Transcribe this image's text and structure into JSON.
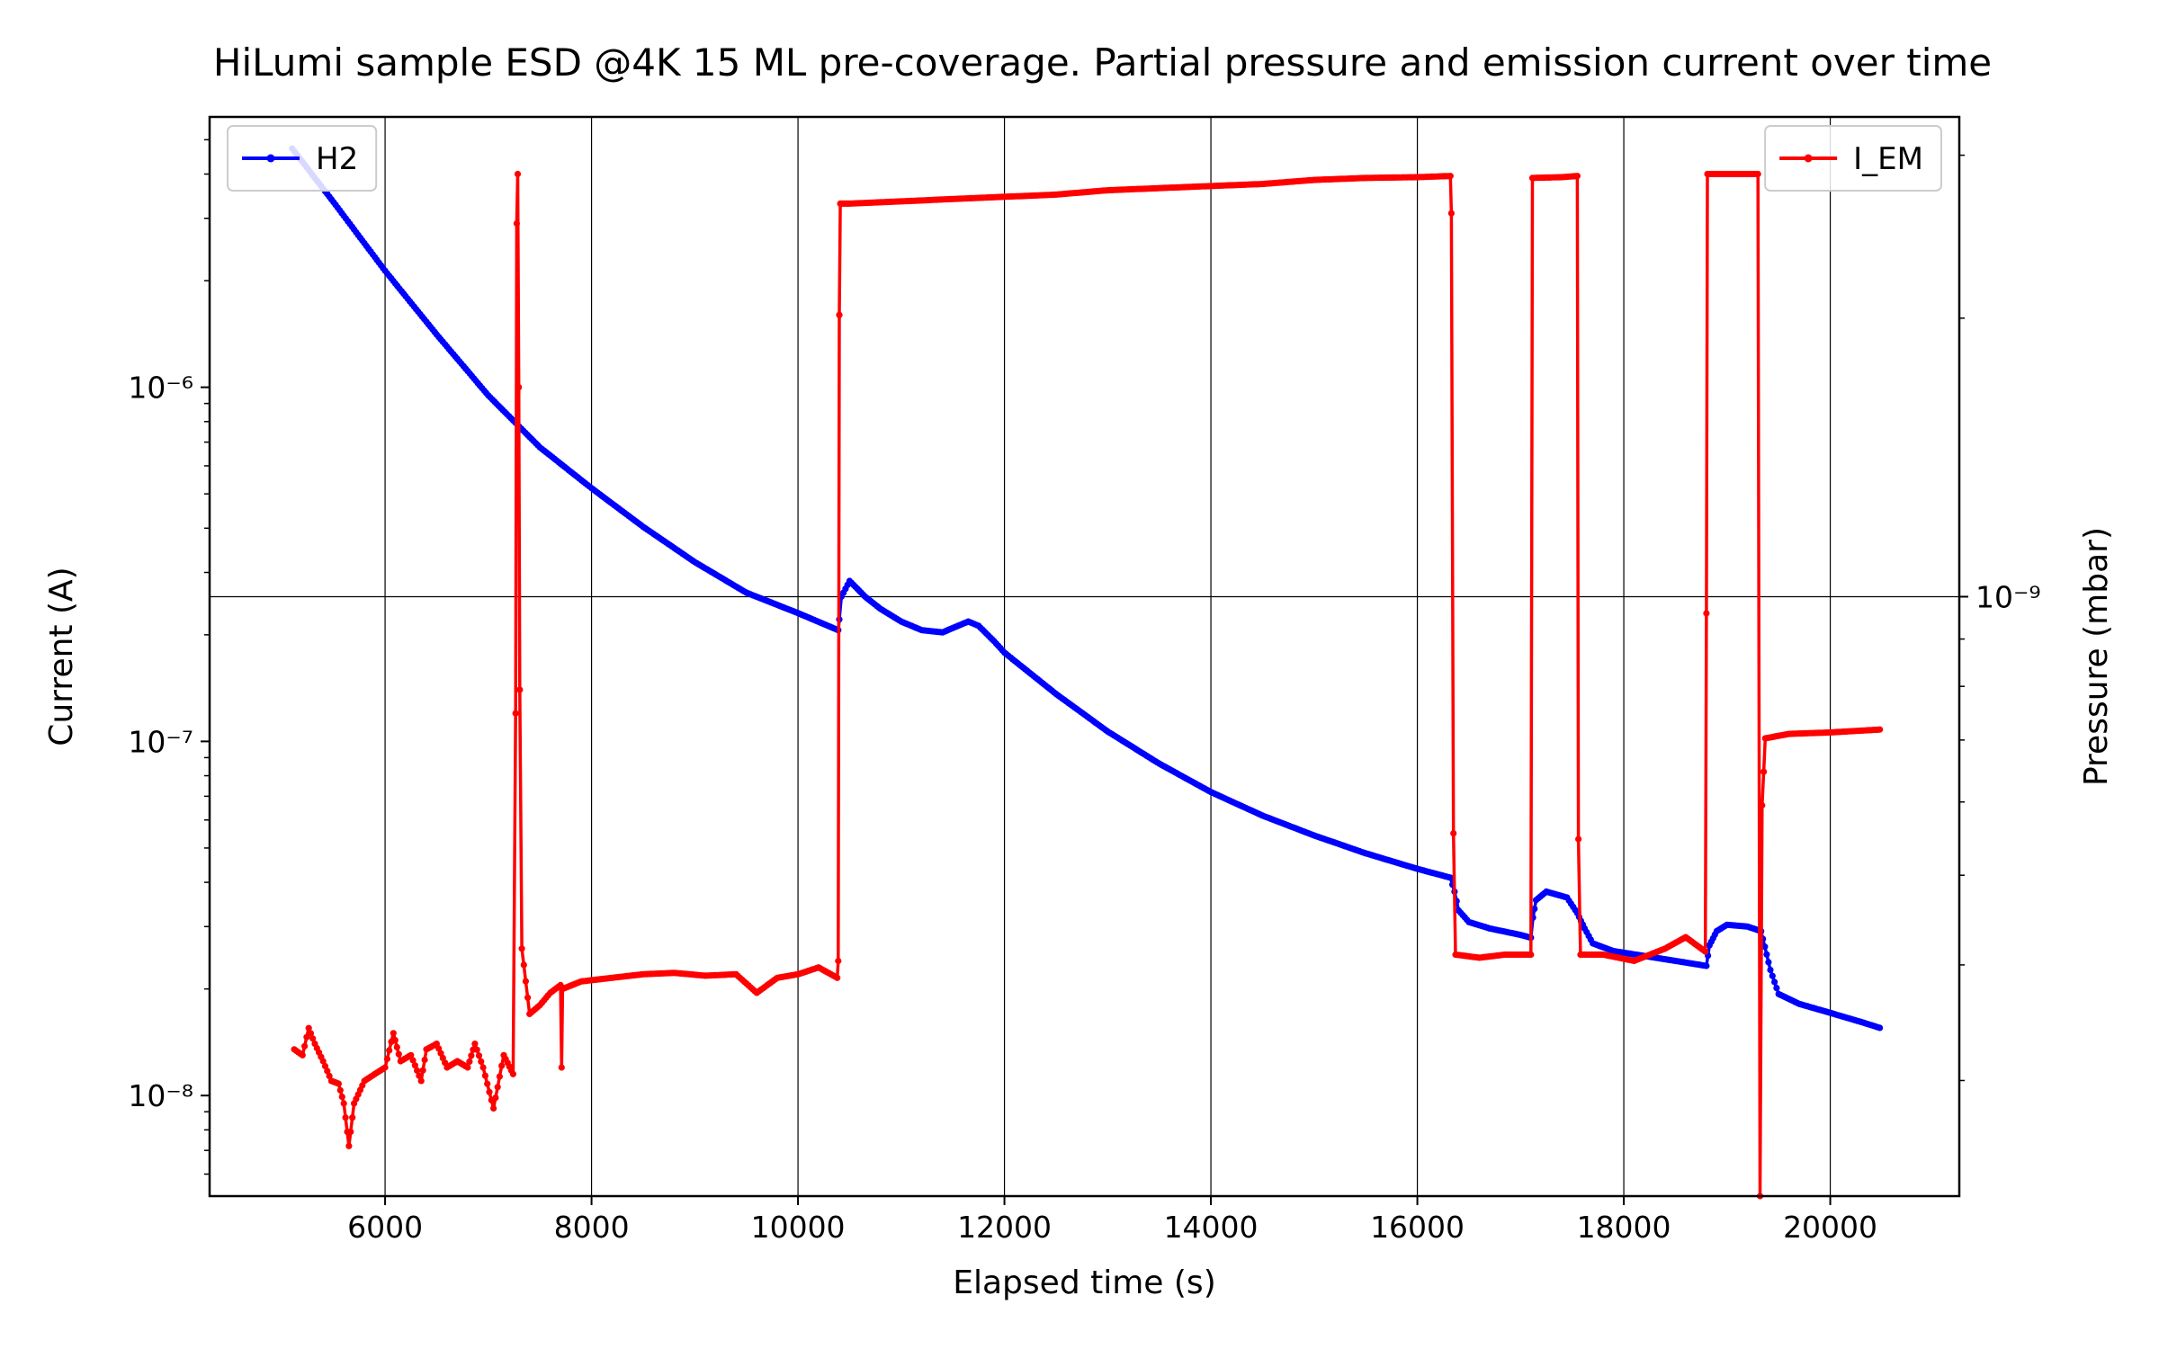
{
  "chart_data": {
    "type": "line",
    "title": "HiLumi sample ESD @4K 15 ML pre-coverage. Partial pressure and emission current over time",
    "xlabel": "Elapsed time (s)",
    "ylabel_left": "Current (A)",
    "ylabel_right": "Pressure (mbar)",
    "xlim": [
      4300,
      21250
    ],
    "x_ticks": [
      6000,
      8000,
      10000,
      12000,
      14000,
      16000,
      18000,
      20000
    ],
    "y_left_scale": "log",
    "y_left_lim": [
      5.2e-09,
      5.8e-06
    ],
    "y_left_ticks": [
      {
        "value": 1e-08,
        "label": "10⁻⁸"
      },
      {
        "value": 1e-07,
        "label": "10⁻⁷"
      },
      {
        "value": 1e-06,
        "label": "10⁻⁶"
      }
    ],
    "y_right_scale": "log",
    "y_right_lim": [
      2.25e-10,
      3.3e-09
    ],
    "y_right_ticks": [
      {
        "value": 1e-09,
        "label": "10⁻⁹"
      }
    ],
    "grid": true,
    "legend_left": {
      "position": "top-left",
      "label": "H2"
    },
    "legend_right": {
      "position": "top-right",
      "label": "I_EM"
    },
    "series": [
      {
        "name": "H2",
        "axis": "right",
        "color": "#0000ff",
        "points": [
          [
            5100,
            3.05e-09
          ],
          [
            5500,
            2.67e-09
          ],
          [
            6000,
            2.25e-09
          ],
          [
            6500,
            1.92e-09
          ],
          [
            7000,
            1.65e-09
          ],
          [
            7500,
            1.45e-09
          ],
          [
            8000,
            1.31e-09
          ],
          [
            8500,
            1.19e-09
          ],
          [
            9000,
            1.09e-09
          ],
          [
            9500,
            1.01e-09
          ],
          [
            10000,
            9.6e-10
          ],
          [
            10390,
            9.2e-10
          ],
          [
            10400,
            9.45e-10
          ],
          [
            10420,
            1e-09
          ],
          [
            10500,
            1.04e-09
          ],
          [
            10650,
            1e-09
          ],
          [
            10800,
            9.7e-10
          ],
          [
            11000,
            9.4e-10
          ],
          [
            11200,
            9.2e-10
          ],
          [
            11400,
            9.15e-10
          ],
          [
            11550,
            9.3e-10
          ],
          [
            11650,
            9.4e-10
          ],
          [
            11750,
            9.3e-10
          ],
          [
            11900,
            8.95e-10
          ],
          [
            12000,
            8.7e-10
          ],
          [
            12500,
            7.85e-10
          ],
          [
            13000,
            7.15e-10
          ],
          [
            13500,
            6.6e-10
          ],
          [
            14000,
            6.15e-10
          ],
          [
            14500,
            5.8e-10
          ],
          [
            15000,
            5.52e-10
          ],
          [
            15500,
            5.28e-10
          ],
          [
            16000,
            5.08e-10
          ],
          [
            16320,
            4.97e-10
          ],
          [
            16360,
            4.8e-10
          ],
          [
            16400,
            4.58e-10
          ],
          [
            16500,
            4.45e-10
          ],
          [
            16700,
            4.38e-10
          ],
          [
            17000,
            4.31e-10
          ],
          [
            17100,
            4.28e-10
          ],
          [
            17120,
            4.5e-10
          ],
          [
            17150,
            4.7e-10
          ],
          [
            17250,
            4.8e-10
          ],
          [
            17450,
            4.73e-10
          ],
          [
            17550,
            4.55e-10
          ],
          [
            17620,
            4.38e-10
          ],
          [
            17700,
            4.22e-10
          ],
          [
            17900,
            4.14e-10
          ],
          [
            18200,
            4.09e-10
          ],
          [
            18500,
            4.04e-10
          ],
          [
            18800,
            3.99e-10
          ],
          [
            18830,
            4.2e-10
          ],
          [
            18900,
            4.35e-10
          ],
          [
            19000,
            4.42e-10
          ],
          [
            19200,
            4.4e-10
          ],
          [
            19330,
            4.35e-10
          ],
          [
            19420,
            3.95e-10
          ],
          [
            19500,
            3.72e-10
          ],
          [
            19700,
            3.63e-10
          ],
          [
            20000,
            3.55e-10
          ],
          [
            20300,
            3.47e-10
          ],
          [
            20480,
            3.42e-10
          ]
        ]
      },
      {
        "name": "I_EM",
        "axis": "left",
        "color": "#ff0000",
        "points": [
          [
            5120,
            1.35e-08
          ],
          [
            5200,
            1.3e-08
          ],
          [
            5260,
            1.55e-08
          ],
          [
            5320,
            1.4e-08
          ],
          [
            5400,
            1.25e-08
          ],
          [
            5480,
            1.1e-08
          ],
          [
            5550,
            1.08e-08
          ],
          [
            5600,
            9.5e-09
          ],
          [
            5650,
            7.2e-09
          ],
          [
            5700,
            9.5e-09
          ],
          [
            5800,
            1.1e-08
          ],
          [
            5900,
            1.15e-08
          ],
          [
            6000,
            1.2e-08
          ],
          [
            6080,
            1.5e-08
          ],
          [
            6150,
            1.25e-08
          ],
          [
            6250,
            1.3e-08
          ],
          [
            6350,
            1.1e-08
          ],
          [
            6400,
            1.35e-08
          ],
          [
            6500,
            1.4e-08
          ],
          [
            6600,
            1.2e-08
          ],
          [
            6700,
            1.25e-08
          ],
          [
            6800,
            1.2e-08
          ],
          [
            6870,
            1.4e-08
          ],
          [
            6950,
            1.2e-08
          ],
          [
            7050,
            9.2e-09
          ],
          [
            7150,
            1.3e-08
          ],
          [
            7240,
            1.15e-08
          ],
          [
            7265,
            1.2e-07
          ],
          [
            7275,
            2.9e-06
          ],
          [
            7285,
            4e-06
          ],
          [
            7295,
            1e-06
          ],
          [
            7305,
            1.4e-07
          ],
          [
            7325,
            2.6e-08
          ],
          [
            7400,
            1.7e-08
          ],
          [
            7500,
            1.8e-08
          ],
          [
            7600,
            1.95e-08
          ],
          [
            7700,
            2.05e-08
          ],
          [
            7710,
            1.2e-08
          ],
          [
            7720,
            2e-08
          ],
          [
            7900,
            2.1e-08
          ],
          [
            8200,
            2.15e-08
          ],
          [
            8500,
            2.2e-08
          ],
          [
            8800,
            2.22e-08
          ],
          [
            9100,
            2.18e-08
          ],
          [
            9400,
            2.2e-08
          ],
          [
            9600,
            1.95e-08
          ],
          [
            9800,
            2.15e-08
          ],
          [
            10000,
            2.2e-08
          ],
          [
            10200,
            2.3e-08
          ],
          [
            10380,
            2.15e-08
          ],
          [
            10390,
            2.4e-08
          ],
          [
            10400,
            1.6e-06
          ],
          [
            10410,
            3.3e-06
          ],
          [
            10500,
            3.3e-06
          ],
          [
            11000,
            3.35e-06
          ],
          [
            11500,
            3.4e-06
          ],
          [
            12000,
            3.45e-06
          ],
          [
            12500,
            3.5e-06
          ],
          [
            13000,
            3.6e-06
          ],
          [
            13500,
            3.65e-06
          ],
          [
            14000,
            3.7e-06
          ],
          [
            14500,
            3.75e-06
          ],
          [
            15000,
            3.85e-06
          ],
          [
            15500,
            3.9e-06
          ],
          [
            16000,
            3.92e-06
          ],
          [
            16320,
            3.95e-06
          ],
          [
            16330,
            3.1e-06
          ],
          [
            16350,
            5.5e-08
          ],
          [
            16370,
            2.5e-08
          ],
          [
            16600,
            2.45e-08
          ],
          [
            16850,
            2.5e-08
          ],
          [
            17100,
            2.5e-08
          ],
          [
            17115,
            3.9e-06
          ],
          [
            17400,
            3.92e-06
          ],
          [
            17550,
            3.95e-06
          ],
          [
            17560,
            5.3e-08
          ],
          [
            17580,
            2.5e-08
          ],
          [
            17800,
            2.5e-08
          ],
          [
            18100,
            2.4e-08
          ],
          [
            18400,
            2.6e-08
          ],
          [
            18600,
            2.8e-08
          ],
          [
            18790,
            2.55e-08
          ],
          [
            18800,
            2.3e-07
          ],
          [
            18810,
            4e-06
          ],
          [
            19300,
            4e-06
          ],
          [
            19320,
            5.2e-09
          ],
          [
            19340,
            6.6e-08
          ],
          [
            19370,
            1.02e-07
          ],
          [
            19600,
            1.05e-07
          ],
          [
            20000,
            1.06e-07
          ],
          [
            20480,
            1.08e-07
          ]
        ]
      }
    ]
  }
}
